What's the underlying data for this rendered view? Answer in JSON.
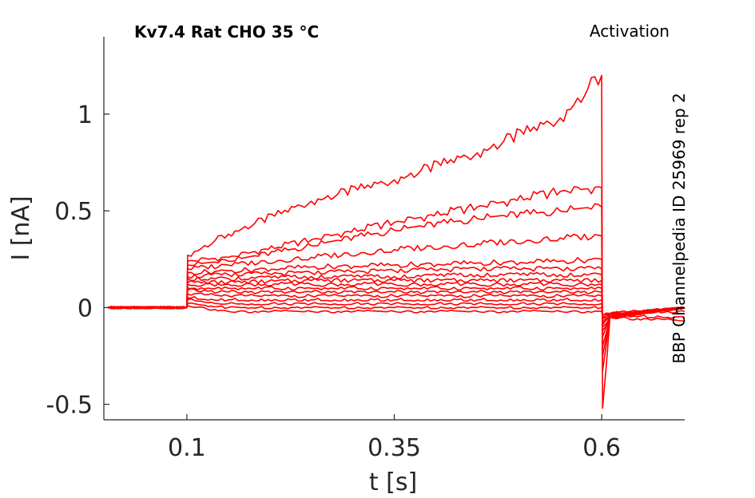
{
  "chart_data": {
    "type": "line",
    "title": "Kv7.4  Rat  CHO  35 °C",
    "subtitle": "Activation",
    "side_label": "BBP Channelpedia ID 25969 rep 2",
    "xlabel": "t [s]",
    "ylabel": "I [nA]",
    "xlim": [
      0.0,
      0.7
    ],
    "ylim": [
      -0.58,
      1.4
    ],
    "x_ticks": [
      0.1,
      0.35,
      0.6
    ],
    "x_tick_labels": [
      "0.1",
      "0.35",
      "0.6"
    ],
    "y_ticks": [
      -0.5,
      0,
      0.5,
      1
    ],
    "y_tick_labels": [
      "-0.5",
      "0",
      "0.5",
      "1"
    ],
    "grid": false,
    "line_color": "#ff0000",
    "series": [
      {
        "x": [
          0.005,
          0.1,
          0.101,
          0.15,
          0.25,
          0.35,
          0.45,
          0.55,
          0.6,
          0.601,
          0.61,
          0.7
        ],
        "y": [
          0.0,
          0.0,
          0.27,
          0.38,
          0.55,
          0.66,
          0.8,
          0.98,
          1.2,
          -0.52,
          -0.05,
          0.0
        ]
      },
      {
        "x": [
          0.005,
          0.1,
          0.101,
          0.15,
          0.25,
          0.35,
          0.45,
          0.55,
          0.6,
          0.601,
          0.61,
          0.7
        ],
        "y": [
          0.0,
          0.0,
          0.24,
          0.26,
          0.35,
          0.44,
          0.52,
          0.6,
          0.62,
          -0.33,
          -0.05,
          0.0
        ]
      },
      {
        "x": [
          0.005,
          0.1,
          0.101,
          0.15,
          0.25,
          0.35,
          0.45,
          0.55,
          0.6,
          0.601,
          0.61,
          0.7
        ],
        "y": [
          0.0,
          0.0,
          0.22,
          0.24,
          0.32,
          0.4,
          0.46,
          0.5,
          0.52,
          -0.25,
          -0.05,
          0.0
        ]
      },
      {
        "x": [
          0.005,
          0.1,
          0.101,
          0.15,
          0.25,
          0.35,
          0.45,
          0.55,
          0.6,
          0.601,
          0.61,
          0.7
        ],
        "y": [
          0.0,
          0.0,
          0.2,
          0.22,
          0.26,
          0.3,
          0.33,
          0.36,
          0.37,
          -0.2,
          -0.05,
          0.0
        ]
      },
      {
        "x": [
          0.005,
          0.1,
          0.101,
          0.15,
          0.25,
          0.35,
          0.45,
          0.55,
          0.6,
          0.601,
          0.61,
          0.7
        ],
        "y": [
          0.0,
          0.0,
          0.18,
          0.19,
          0.21,
          0.22,
          0.23,
          0.24,
          0.25,
          -0.15,
          -0.05,
          0.0
        ]
      },
      {
        "x": [
          0.005,
          0.1,
          0.101,
          0.15,
          0.25,
          0.35,
          0.45,
          0.55,
          0.6,
          0.601,
          0.61,
          0.7
        ],
        "y": [
          0.0,
          0.0,
          0.16,
          0.17,
          0.18,
          0.19,
          0.2,
          0.2,
          0.2,
          -0.12,
          -0.05,
          0.0
        ]
      },
      {
        "x": [
          0.005,
          0.1,
          0.101,
          0.15,
          0.25,
          0.35,
          0.45,
          0.55,
          0.6,
          0.601,
          0.61,
          0.7
        ],
        "y": [
          0.0,
          0.0,
          0.15,
          0.15,
          0.16,
          0.16,
          0.17,
          0.17,
          0.17,
          -0.1,
          -0.05,
          0.0
        ]
      },
      {
        "x": [
          0.005,
          0.1,
          0.101,
          0.15,
          0.25,
          0.35,
          0.45,
          0.55,
          0.6,
          0.601,
          0.61,
          0.7
        ],
        "y": [
          0.0,
          0.0,
          0.13,
          0.13,
          0.14,
          0.14,
          0.14,
          0.14,
          0.14,
          -0.09,
          -0.05,
          0.0
        ]
      },
      {
        "x": [
          0.005,
          0.1,
          0.101,
          0.15,
          0.25,
          0.35,
          0.45,
          0.55,
          0.6,
          0.601,
          0.61,
          0.7
        ],
        "y": [
          0.0,
          0.0,
          0.12,
          0.12,
          0.12,
          0.12,
          0.12,
          0.12,
          0.12,
          -0.08,
          -0.04,
          0.0
        ]
      },
      {
        "x": [
          0.005,
          0.1,
          0.101,
          0.15,
          0.25,
          0.35,
          0.45,
          0.55,
          0.6,
          0.601,
          0.61,
          0.7
        ],
        "y": [
          0.0,
          0.0,
          0.1,
          0.1,
          0.1,
          0.1,
          0.1,
          0.1,
          0.1,
          -0.07,
          -0.04,
          0.0
        ]
      },
      {
        "x": [
          0.005,
          0.1,
          0.101,
          0.15,
          0.25,
          0.35,
          0.45,
          0.55,
          0.6,
          0.601,
          0.61,
          0.7
        ],
        "y": [
          0.0,
          0.0,
          0.09,
          0.08,
          0.08,
          0.08,
          0.08,
          0.08,
          0.08,
          -0.06,
          -0.04,
          0.0
        ]
      },
      {
        "x": [
          0.005,
          0.1,
          0.101,
          0.15,
          0.25,
          0.35,
          0.45,
          0.55,
          0.6,
          0.601,
          0.61,
          0.7
        ],
        "y": [
          0.0,
          0.0,
          0.07,
          0.06,
          0.06,
          0.06,
          0.06,
          0.06,
          0.06,
          -0.05,
          -0.03,
          0.0
        ]
      },
      {
        "x": [
          0.005,
          0.1,
          0.101,
          0.15,
          0.25,
          0.35,
          0.45,
          0.55,
          0.6,
          0.601,
          0.61,
          0.7
        ],
        "y": [
          0.0,
          0.0,
          0.05,
          0.04,
          0.04,
          0.04,
          0.04,
          0.04,
          0.04,
          -0.04,
          -0.03,
          0.0
        ]
      },
      {
        "x": [
          0.005,
          0.1,
          0.101,
          0.15,
          0.25,
          0.35,
          0.45,
          0.55,
          0.6,
          0.601,
          0.61,
          0.7
        ],
        "y": [
          0.0,
          0.0,
          0.04,
          0.02,
          0.02,
          0.02,
          0.02,
          0.02,
          0.02,
          -0.04,
          -0.03,
          -0.02
        ]
      },
      {
        "x": [
          0.005,
          0.1,
          0.101,
          0.15,
          0.25,
          0.35,
          0.45,
          0.55,
          0.6,
          0.601,
          0.61,
          0.7
        ],
        "y": [
          0.0,
          0.0,
          0.02,
          0.0,
          0.0,
          0.0,
          0.0,
          0.0,
          0.0,
          -0.04,
          -0.04,
          -0.05
        ]
      },
      {
        "x": [
          0.005,
          0.1,
          0.101,
          0.15,
          0.25,
          0.35,
          0.45,
          0.55,
          0.6,
          0.601,
          0.61,
          0.7
        ],
        "y": [
          0.0,
          0.0,
          0.01,
          -0.02,
          -0.02,
          -0.02,
          -0.02,
          -0.02,
          -0.02,
          -0.05,
          -0.05,
          -0.07
        ]
      }
    ]
  }
}
